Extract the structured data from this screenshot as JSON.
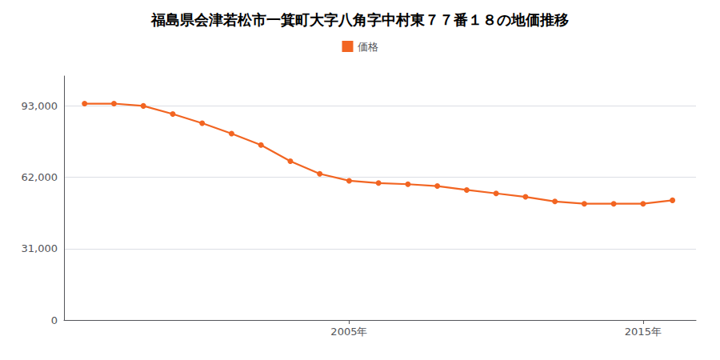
{
  "chart_data": {
    "type": "line",
    "title": "福島県会津若松市一箕町大字八角字中村東７７番１８の地価推移",
    "x": [
      1996,
      1997,
      1998,
      1999,
      2000,
      2001,
      2002,
      2003,
      2004,
      2005,
      2006,
      2007,
      2008,
      2009,
      2010,
      2011,
      2012,
      2013,
      2014,
      2015,
      2016
    ],
    "series": [
      {
        "name": "価格",
        "color": "#F26522",
        "values": [
          94000,
          94000,
          93000,
          89500,
          85500,
          81000,
          76000,
          69000,
          63500,
          60500,
          59500,
          59000,
          58200,
          56500,
          55000,
          53500,
          51500,
          50500,
          50500,
          50500,
          52000
        ]
      }
    ],
    "xlim": [
      1995.3,
      2016.8
    ],
    "xticks": [
      {
        "value": 2005,
        "label": "2005年"
      },
      {
        "value": 2015,
        "label": "2015年"
      }
    ],
    "ylim": [
      0,
      106000
    ],
    "yticks": [
      0,
      {
        "value": 31000,
        "label": "31,000"
      },
      {
        "value": 62000,
        "label": "62,000"
      },
      {
        "value": 93000,
        "label": "93,000"
      }
    ],
    "grid": true,
    "legend": "top",
    "marker": "circle"
  }
}
